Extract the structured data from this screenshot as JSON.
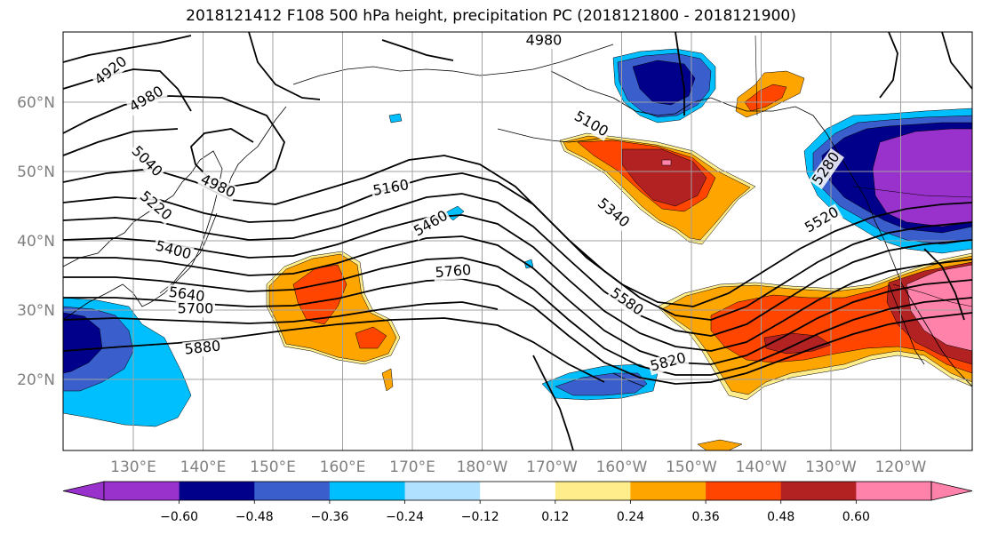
{
  "title": "2018121412 F108 500 hPa height, precipitation PC (2018121800 - 2018121900)",
  "map": {
    "lon_labels": [
      "130°E",
      "140°E",
      "150°E",
      "160°E",
      "170°E",
      "180°W",
      "170°W",
      "160°W",
      "150°W",
      "140°W",
      "130°W",
      "120°W"
    ],
    "lat_labels": [
      "60°N",
      "50°N",
      "40°N",
      "30°N",
      "20°N"
    ],
    "contour_labels": [
      "4920",
      "4980",
      "4980",
      "4980",
      "5040",
      "5100",
      "5160",
      "5220",
      "5280",
      "5340",
      "5400",
      "5460",
      "5520",
      "5580",
      "5640",
      "5700",
      "5760",
      "5820",
      "5880"
    ],
    "fill_colors": {
      "neg_060": "#9932cc",
      "neg_048": "#00008b",
      "neg_036": "#3a5fcd",
      "neg_024": "#00bfff",
      "neg_012": "#b0e2ff",
      "zero": "#ffffff",
      "pos_012": "#ffec8b",
      "pos_024": "#ffa500",
      "pos_036": "#ff4500",
      "pos_048": "#b22222",
      "pos_060": "#ff82ab"
    }
  },
  "colorbar": {
    "ticks": [
      "−0.60",
      "−0.48",
      "−0.36",
      "−0.24",
      "−0.12",
      "0.12",
      "0.24",
      "0.36",
      "0.48",
      "0.60"
    ],
    "colors": [
      "#9932cc",
      "#00008b",
      "#3a5fcd",
      "#00bfff",
      "#b0e2ff",
      "#ffffff",
      "#ffec8b",
      "#ffa500",
      "#ff4500",
      "#b22222",
      "#ff82ab"
    ]
  }
}
